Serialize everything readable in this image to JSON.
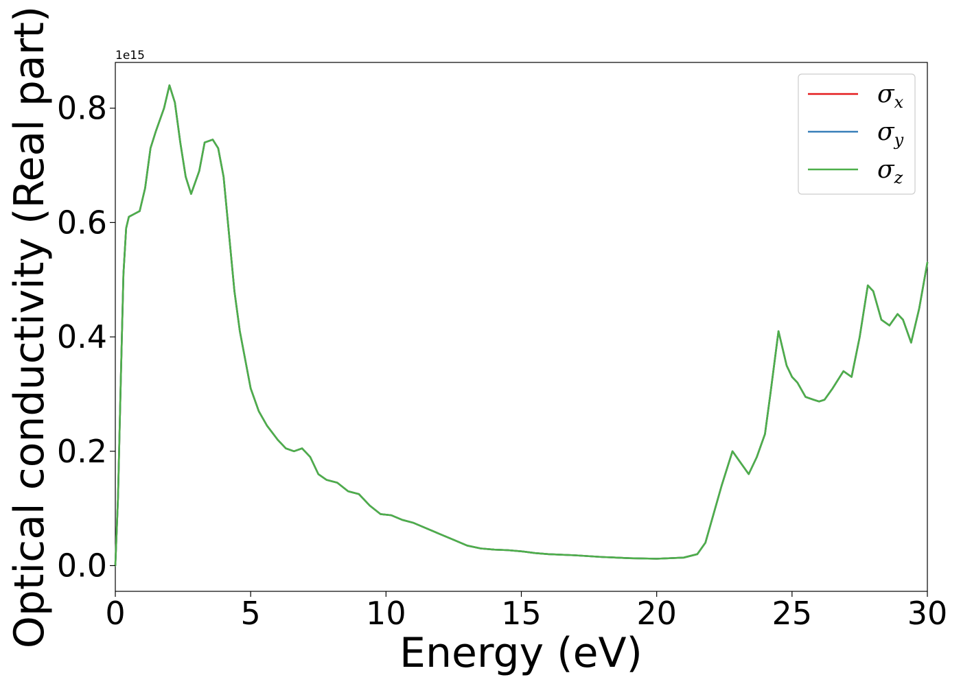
{
  "chart_data": {
    "type": "line",
    "xlabel": "Energy (eV)",
    "ylabel": "Optical conductivity (Real part)",
    "y_offset_text": "1e15",
    "xlim": [
      0,
      30
    ],
    "ylim": [
      -0.045,
      0.88
    ],
    "x_ticks": [
      0,
      5,
      10,
      15,
      20,
      25,
      30
    ],
    "x_tick_labels": [
      "0",
      "5",
      "10",
      "15",
      "20",
      "25",
      "30"
    ],
    "y_ticks": [
      0.0,
      0.2,
      0.4,
      0.6,
      0.8
    ],
    "y_tick_labels": [
      "0.0",
      "0.2",
      "0.4",
      "0.6",
      "0.8"
    ],
    "grid": false,
    "legend_position": "top-right",
    "series": [
      {
        "name": "σx",
        "symbol": "σ",
        "subscript": "x",
        "color": "#e41a1c"
      },
      {
        "name": "σy",
        "symbol": "σ",
        "subscript": "y",
        "color": "#377eb8"
      },
      {
        "name": "σz",
        "symbol": "σ",
        "subscript": "z",
        "color": "#4daf4a"
      }
    ],
    "x": [
      0,
      0.1,
      0.2,
      0.3,
      0.4,
      0.5,
      0.7,
      0.9,
      1.1,
      1.3,
      1.5,
      1.8,
      2.0,
      2.2,
      2.4,
      2.6,
      2.8,
      3.1,
      3.3,
      3.6,
      3.8,
      4.0,
      4.2,
      4.4,
      4.6,
      4.8,
      5.0,
      5.3,
      5.6,
      6.0,
      6.3,
      6.6,
      6.9,
      7.2,
      7.5,
      7.8,
      8.2,
      8.6,
      9.0,
      9.4,
      9.8,
      10.2,
      10.6,
      11.0,
      11.5,
      12.0,
      12.5,
      13.0,
      13.5,
      14.0,
      14.5,
      15.0,
      15.5,
      16.0,
      17.0,
      18.0,
      19.0,
      20.0,
      21.0,
      21.5,
      21.8,
      22.1,
      22.4,
      22.8,
      23.1,
      23.4,
      23.7,
      24.0,
      24.2,
      24.5,
      24.8,
      25.0,
      25.2,
      25.5,
      25.8,
      26.0,
      26.2,
      26.5,
      26.9,
      27.2,
      27.5,
      27.8,
      28.0,
      28.3,
      28.6,
      28.9,
      29.1,
      29.4,
      29.7,
      30.0
    ],
    "values": [
      0.0,
      0.12,
      0.32,
      0.51,
      0.59,
      0.61,
      0.615,
      0.62,
      0.66,
      0.73,
      0.76,
      0.8,
      0.84,
      0.81,
      0.74,
      0.68,
      0.65,
      0.69,
      0.74,
      0.745,
      0.73,
      0.68,
      0.58,
      0.48,
      0.41,
      0.36,
      0.31,
      0.27,
      0.245,
      0.22,
      0.205,
      0.2,
      0.205,
      0.19,
      0.16,
      0.15,
      0.145,
      0.13,
      0.125,
      0.105,
      0.09,
      0.088,
      0.08,
      0.075,
      0.065,
      0.055,
      0.045,
      0.035,
      0.03,
      0.028,
      0.027,
      0.025,
      0.022,
      0.02,
      0.018,
      0.015,
      0.013,
      0.012,
      0.014,
      0.02,
      0.04,
      0.09,
      0.14,
      0.2,
      0.18,
      0.16,
      0.19,
      0.23,
      0.3,
      0.41,
      0.35,
      0.33,
      0.32,
      0.295,
      0.29,
      0.287,
      0.29,
      0.31,
      0.34,
      0.33,
      0.4,
      0.49,
      0.48,
      0.43,
      0.42,
      0.44,
      0.43,
      0.39,
      0.45,
      0.53
    ]
  }
}
